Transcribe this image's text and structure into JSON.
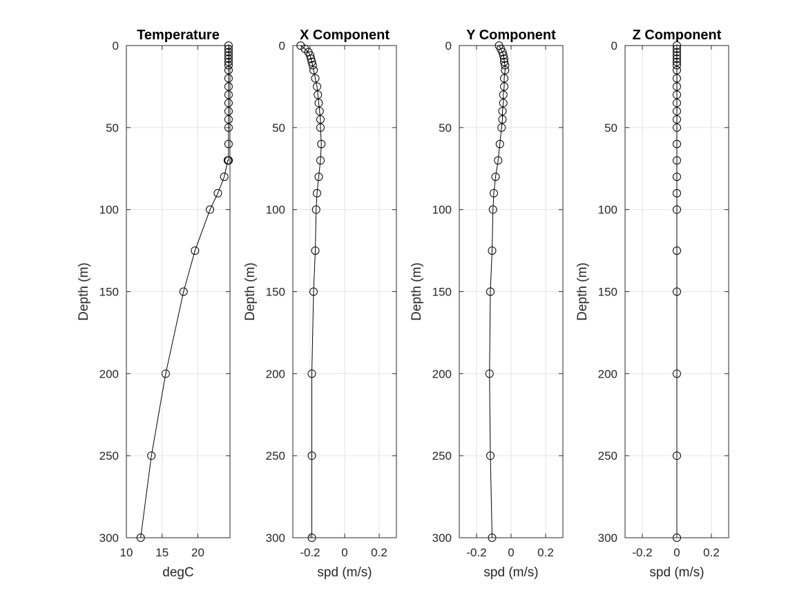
{
  "chart_data": [
    {
      "type": "scatter",
      "title": "Temperature",
      "xlabel": "degC",
      "ylabel": "Depth (m)",
      "xlim": [
        10,
        24.5
      ],
      "ylim": [
        0,
        300
      ],
      "y_reversed": true,
      "grid": true,
      "xticks": [
        10,
        15,
        20
      ],
      "yticks": [
        0,
        50,
        100,
        150,
        200,
        250,
        300
      ],
      "x": [
        24.3,
        24.3,
        24.3,
        24.3,
        24.3,
        24.3,
        24.3,
        24.3,
        24.3,
        24.3,
        24.3,
        24.3,
        24.3,
        24.3,
        24.3,
        24.3,
        24.3,
        24.3,
        24.3,
        24.2,
        23.7,
        22.8,
        21.7,
        19.6,
        18.0,
        15.5,
        13.5,
        12.0
      ],
      "y": [
        0,
        2,
        4,
        6,
        8,
        10,
        12,
        15,
        20,
        25,
        30,
        35,
        40,
        45,
        50,
        60,
        70,
        70,
        70,
        70,
        80,
        90,
        100,
        125,
        150,
        200,
        250,
        300
      ]
    },
    {
      "type": "scatter",
      "title": "X Component",
      "xlabel": "spd (m/s)",
      "ylabel": "Depth (m)",
      "xlim": [
        -0.3,
        0.3
      ],
      "ylim": [
        0,
        300
      ],
      "y_reversed": true,
      "grid": true,
      "xticks": [
        -0.2,
        0,
        0.2
      ],
      "xticklabels": [
        "-0.2",
        "0",
        "0.2"
      ],
      "yticks": [
        0,
        50,
        100,
        150,
        200,
        250,
        300
      ],
      "x": [
        -0.255,
        -0.23,
        -0.21,
        -0.2,
        -0.195,
        -0.19,
        -0.185,
        -0.18,
        -0.17,
        -0.16,
        -0.155,
        -0.15,
        -0.145,
        -0.14,
        -0.14,
        -0.135,
        -0.14,
        -0.15,
        -0.16,
        -0.165,
        -0.17,
        -0.18,
        -0.19,
        -0.19,
        -0.19
      ],
      "y": [
        0,
        2,
        4,
        6,
        8,
        10,
        12,
        15,
        20,
        25,
        30,
        35,
        40,
        45,
        50,
        60,
        70,
        80,
        90,
        100,
        125,
        150,
        200,
        250,
        300
      ]
    },
    {
      "type": "scatter",
      "title": "Y Component",
      "xlabel": "spd (m/s)",
      "ylabel": "Depth (m)",
      "xlim": [
        -0.3,
        0.3
      ],
      "ylim": [
        0,
        300
      ],
      "y_reversed": true,
      "grid": true,
      "xticks": [
        -0.2,
        0,
        0.2
      ],
      "xticklabels": [
        "-0.2",
        "0",
        "0.2"
      ],
      "yticks": [
        0,
        50,
        100,
        150,
        200,
        250,
        300
      ],
      "x": [
        -0.07,
        -0.06,
        -0.05,
        -0.045,
        -0.04,
        -0.04,
        -0.035,
        -0.035,
        -0.04,
        -0.04,
        -0.045,
        -0.045,
        -0.05,
        -0.05,
        -0.055,
        -0.065,
        -0.075,
        -0.09,
        -0.1,
        -0.105,
        -0.11,
        -0.12,
        -0.125,
        -0.12,
        -0.11
      ],
      "y": [
        0,
        2,
        4,
        6,
        8,
        10,
        12,
        15,
        20,
        25,
        30,
        35,
        40,
        45,
        50,
        60,
        70,
        80,
        90,
        100,
        125,
        150,
        200,
        250,
        300
      ]
    },
    {
      "type": "scatter",
      "title": "Z Component",
      "xlabel": "spd (m/s)",
      "ylabel": "Depth (m)",
      "xlim": [
        -0.3,
        0.3
      ],
      "ylim": [
        0,
        300
      ],
      "y_reversed": true,
      "grid": true,
      "xticks": [
        -0.2,
        0,
        0.2
      ],
      "xticklabels": [
        "-0.2",
        "0",
        "0.2"
      ],
      "yticks": [
        0,
        50,
        100,
        150,
        200,
        250,
        300
      ],
      "x": [
        0,
        0,
        0,
        0,
        0,
        0,
        0,
        0,
        0,
        0,
        0,
        0,
        0,
        0,
        0,
        0,
        0,
        0,
        0,
        0,
        0,
        0,
        0,
        0,
        0
      ],
      "y": [
        0,
        2,
        4,
        6,
        8,
        10,
        12,
        15,
        20,
        25,
        30,
        35,
        40,
        45,
        50,
        60,
        70,
        80,
        90,
        100,
        125,
        150,
        200,
        250,
        300
      ]
    }
  ]
}
